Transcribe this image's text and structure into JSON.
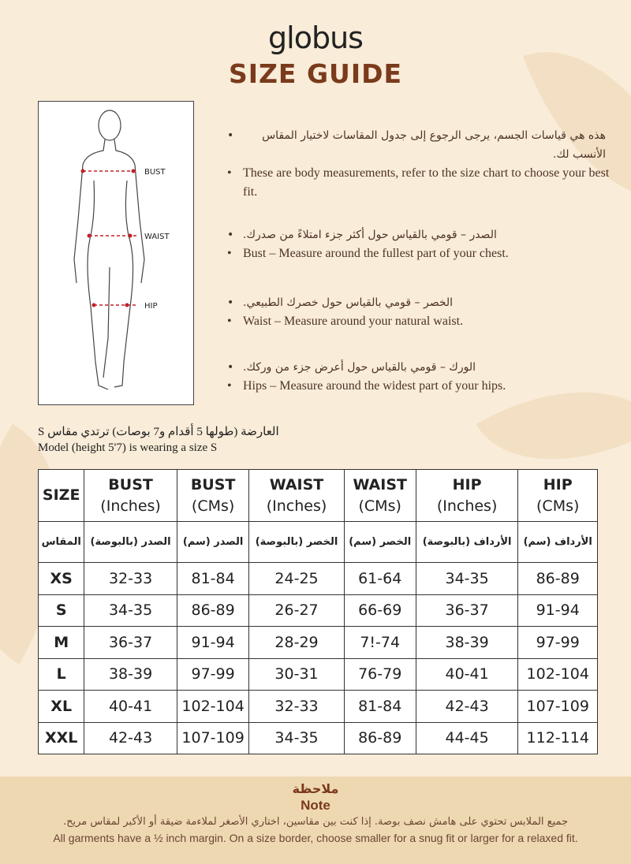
{
  "brand": "globus",
  "title": "SIZE GUIDE",
  "figure_labels": {
    "bust": "BUST",
    "waist": "WAIST",
    "hip": "HIP"
  },
  "bullets": [
    {
      "ar": "هذه هي قياسات الجسم، يرجى الرجوع إلى جدول المقاسات لاختيار المقاس الأنسب لك.",
      "en": "These are body measurements, refer to the size chart to choose your best fit."
    },
    {
      "ar": "الصدر – قومي بالقياس حول أكثر جزء امتلاءً من صدرك.",
      "en": "Bust – Measure around the fullest part of your chest."
    },
    {
      "ar": "الخصر – قومي بالقياس حول خصرك الطبيعي.",
      "en": "Waist – Measure around your natural waist."
    },
    {
      "ar": "الورك – قومي بالقياس حول أعرض جزء من وركك.",
      "en": "Hips – Measure around the widest part of your hips."
    }
  ],
  "model": {
    "ar": "العارضة (طولها 5 أقدام و7 بوصات) ترتدي مقاس S",
    "en": "Model (height 5'7) is wearing a size S"
  },
  "table": {
    "headers": [
      [
        "SIZE",
        ""
      ],
      [
        "BUST",
        "(Inches)"
      ],
      [
        "BUST",
        "(CMs)"
      ],
      [
        "WAIST",
        "(Inches)"
      ],
      [
        "WAIST",
        "(CMs)"
      ],
      [
        "HIP",
        "(Inches)"
      ],
      [
        "HIP",
        "(CMs)"
      ]
    ],
    "headers_ar": [
      "المقاس",
      "الصدر (بالبوصة)",
      "الصدر (سم)",
      "الخصر (بالبوصة)",
      "الخصر (سم)",
      "الأرداف (بالبوصة)",
      "الأرداف (سم)"
    ],
    "rows": [
      [
        "XS",
        "32-33",
        "81-84",
        "24-25",
        "61-64",
        "34-35",
        "86-89"
      ],
      [
        "S",
        "34-35",
        "86-89",
        "26-27",
        "66-69",
        "36-37",
        "91-94"
      ],
      [
        "M",
        "36-37",
        "91-94",
        "28-29",
        "7!-74",
        "38-39",
        "97-99"
      ],
      [
        "L",
        "38-39",
        "97-99",
        "30-31",
        "76-79",
        "40-41",
        "102-104"
      ],
      [
        "XL",
        "40-41",
        "102-104",
        "32-33",
        "81-84",
        "42-43",
        "107-109"
      ],
      [
        "XXL",
        "42-43",
        "107-109",
        "34-35",
        "86-89",
        "44-45",
        "112-114"
      ]
    ]
  },
  "note": {
    "title_ar": "ملاحظة",
    "title_en": "Note",
    "ar": "جميع الملابس تحتوي على هامش نصف بوصة. إذا كنت بين مقاسين، اختاري الأصغر لملاءمة ضيقة أو الأكبر لمقاس مريح.",
    "en": "All garments have a ½ inch margin. On a size border, choose smaller for a snug fit or larger for a relaxed fit."
  },
  "colors": {
    "background": "#f9ecd8",
    "accent": "#7a3a1c",
    "note_band": "#eed8b2",
    "measure_line": "#c0202a"
  }
}
